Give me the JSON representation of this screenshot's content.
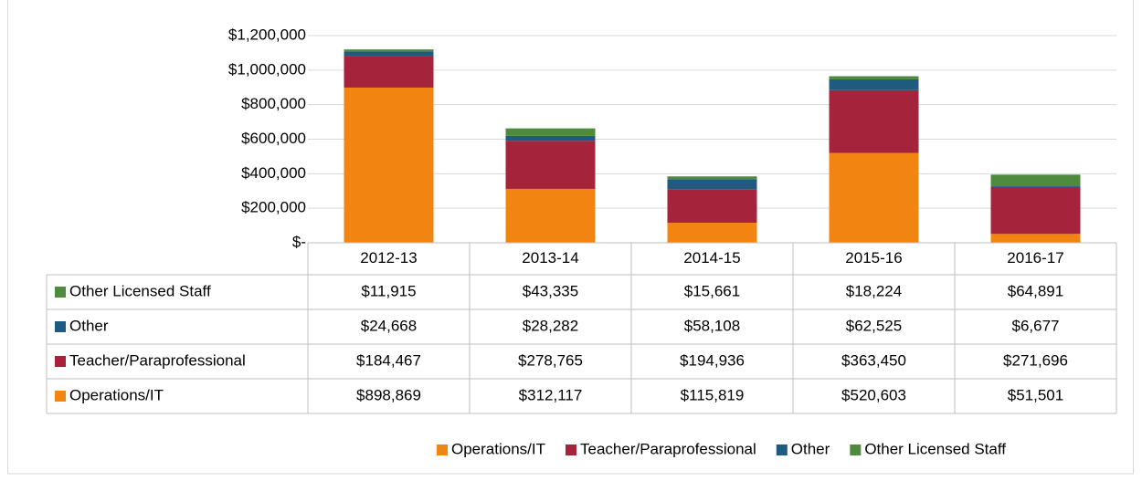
{
  "chart_data": {
    "type": "bar",
    "stacked": true,
    "categories": [
      "2012-13",
      "2013-14",
      "2014-15",
      "2015-16",
      "2016-17"
    ],
    "series": [
      {
        "name": "Operations/IT",
        "color": "#f28411",
        "values": [
          898869,
          312117,
          115819,
          520603,
          51501
        ],
        "value_labels": [
          "$898,869",
          "$312,117",
          "$115,819",
          "$520,603",
          "$51,501"
        ]
      },
      {
        "name": "Teacher/Paraprofessional",
        "color": "#a5243b",
        "values": [
          184467,
          278765,
          194936,
          363450,
          271696
        ],
        "value_labels": [
          "$184,467",
          "$278,765",
          "$194,936",
          "$363,450",
          "$271,696"
        ]
      },
      {
        "name": "Other",
        "color": "#1f5a80",
        "values": [
          24668,
          28282,
          58108,
          62525,
          6677
        ],
        "value_labels": [
          "$24,668",
          "$28,282",
          "$58,108",
          "$62,525",
          "$6,677"
        ]
      },
      {
        "name": "Other Licensed Staff",
        "color": "#4e8b3e",
        "values": [
          11915,
          43335,
          15661,
          18224,
          64891
        ],
        "value_labels": [
          "$11,915",
          "$43,335",
          "$15,661",
          "$18,224",
          "$64,891"
        ]
      }
    ],
    "ylim": [
      0,
      1200000
    ],
    "yticks": [
      {
        "value": 0,
        "label": "$-"
      },
      {
        "value": 200000,
        "label": "$200,000"
      },
      {
        "value": 400000,
        "label": "$400,000"
      },
      {
        "value": 600000,
        "label": "$600,000"
      },
      {
        "value": 800000,
        "label": "$800,000"
      },
      {
        "value": 1000000,
        "label": "$1,000,000"
      },
      {
        "value": 1200000,
        "label": "$1,200,000"
      }
    ],
    "grid": true,
    "legend": "bottom"
  }
}
